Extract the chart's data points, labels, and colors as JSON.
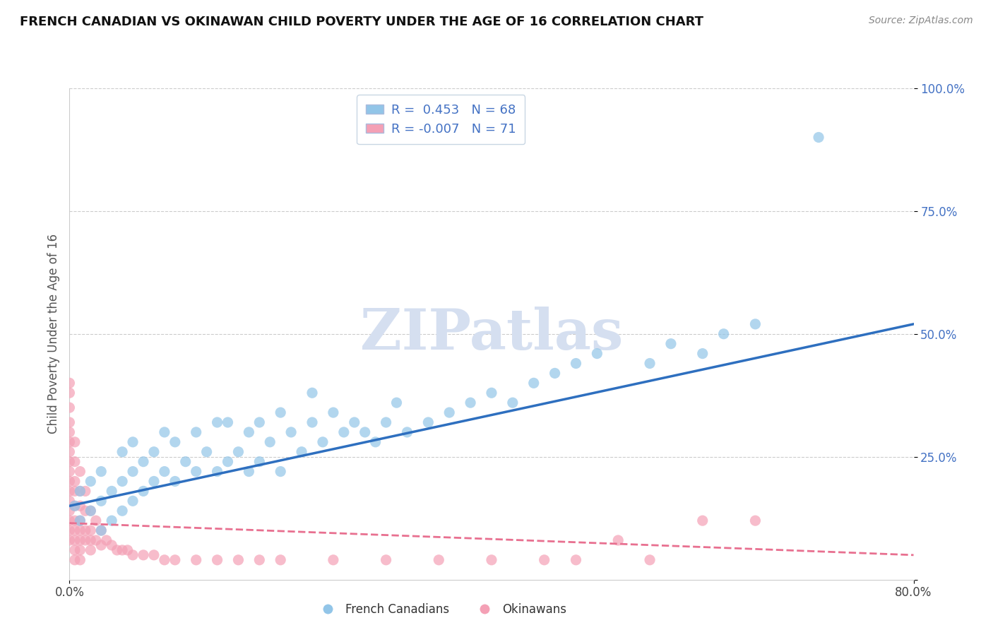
{
  "title": "FRENCH CANADIAN VS OKINAWAN CHILD POVERTY UNDER THE AGE OF 16 CORRELATION CHART",
  "source": "Source: ZipAtlas.com",
  "ylabel": "Child Poverty Under the Age of 16",
  "x_min": 0.0,
  "x_max": 0.8,
  "y_min": 0.0,
  "y_max": 1.0,
  "r_french": 0.453,
  "n_french": 68,
  "r_okinawan": -0.007,
  "n_okinawan": 71,
  "french_color": "#92C5E8",
  "okinawan_color": "#F4A0B5",
  "trendline_french_color": "#2E6FBF",
  "trendline_okinawan_color": "#E87090",
  "legend_r_color": "#4472C4",
  "watermark": "ZIPatlas",
  "watermark_color": "#D5DFF0",
  "french_scatter_x": [
    0.005,
    0.01,
    0.01,
    0.02,
    0.02,
    0.03,
    0.03,
    0.03,
    0.04,
    0.04,
    0.05,
    0.05,
    0.05,
    0.06,
    0.06,
    0.06,
    0.07,
    0.07,
    0.08,
    0.08,
    0.09,
    0.09,
    0.1,
    0.1,
    0.11,
    0.12,
    0.12,
    0.13,
    0.14,
    0.14,
    0.15,
    0.15,
    0.16,
    0.17,
    0.17,
    0.18,
    0.18,
    0.19,
    0.2,
    0.2,
    0.21,
    0.22,
    0.23,
    0.23,
    0.24,
    0.25,
    0.26,
    0.27,
    0.28,
    0.29,
    0.3,
    0.31,
    0.32,
    0.34,
    0.36,
    0.38,
    0.4,
    0.42,
    0.44,
    0.46,
    0.48,
    0.5,
    0.55,
    0.57,
    0.6,
    0.62,
    0.65,
    0.71
  ],
  "french_scatter_y": [
    0.15,
    0.12,
    0.18,
    0.14,
    0.2,
    0.1,
    0.16,
    0.22,
    0.12,
    0.18,
    0.14,
    0.2,
    0.26,
    0.16,
    0.22,
    0.28,
    0.18,
    0.24,
    0.2,
    0.26,
    0.22,
    0.3,
    0.2,
    0.28,
    0.24,
    0.22,
    0.3,
    0.26,
    0.22,
    0.32,
    0.24,
    0.32,
    0.26,
    0.22,
    0.3,
    0.24,
    0.32,
    0.28,
    0.22,
    0.34,
    0.3,
    0.26,
    0.32,
    0.38,
    0.28,
    0.34,
    0.3,
    0.32,
    0.3,
    0.28,
    0.32,
    0.36,
    0.3,
    0.32,
    0.34,
    0.36,
    0.38,
    0.36,
    0.4,
    0.42,
    0.44,
    0.46,
    0.44,
    0.48,
    0.46,
    0.5,
    0.52,
    0.9
  ],
  "okinawan_scatter_x": [
    0.0,
    0.0,
    0.0,
    0.0,
    0.0,
    0.0,
    0.0,
    0.0,
    0.0,
    0.0,
    0.0,
    0.0,
    0.0,
    0.0,
    0.0,
    0.0,
    0.005,
    0.005,
    0.005,
    0.005,
    0.005,
    0.005,
    0.005,
    0.005,
    0.005,
    0.005,
    0.01,
    0.01,
    0.01,
    0.01,
    0.01,
    0.01,
    0.01,
    0.01,
    0.015,
    0.015,
    0.015,
    0.015,
    0.02,
    0.02,
    0.02,
    0.02,
    0.025,
    0.025,
    0.03,
    0.03,
    0.035,
    0.04,
    0.045,
    0.05,
    0.055,
    0.06,
    0.07,
    0.08,
    0.09,
    0.1,
    0.12,
    0.14,
    0.16,
    0.18,
    0.2,
    0.25,
    0.3,
    0.35,
    0.4,
    0.45,
    0.48,
    0.52,
    0.55,
    0.6,
    0.65
  ],
  "okinawan_scatter_y": [
    0.3,
    0.32,
    0.28,
    0.26,
    0.22,
    0.2,
    0.18,
    0.24,
    0.16,
    0.14,
    0.12,
    0.1,
    0.08,
    0.35,
    0.38,
    0.4,
    0.28,
    0.24,
    0.2,
    0.18,
    0.15,
    0.12,
    0.1,
    0.08,
    0.06,
    0.04,
    0.22,
    0.18,
    0.15,
    0.12,
    0.1,
    0.08,
    0.06,
    0.04,
    0.18,
    0.14,
    0.1,
    0.08,
    0.14,
    0.1,
    0.08,
    0.06,
    0.12,
    0.08,
    0.1,
    0.07,
    0.08,
    0.07,
    0.06,
    0.06,
    0.06,
    0.05,
    0.05,
    0.05,
    0.04,
    0.04,
    0.04,
    0.04,
    0.04,
    0.04,
    0.04,
    0.04,
    0.04,
    0.04,
    0.04,
    0.04,
    0.04,
    0.08,
    0.04,
    0.12,
    0.12
  ],
  "french_trendline_x0": 0.0,
  "french_trendline_y0": 0.15,
  "french_trendline_x1": 0.8,
  "french_trendline_y1": 0.52,
  "okinawan_trendline_x0": 0.0,
  "okinawan_trendline_y0": 0.115,
  "okinawan_trendline_x1": 0.8,
  "okinawan_trendline_y1": 0.05
}
